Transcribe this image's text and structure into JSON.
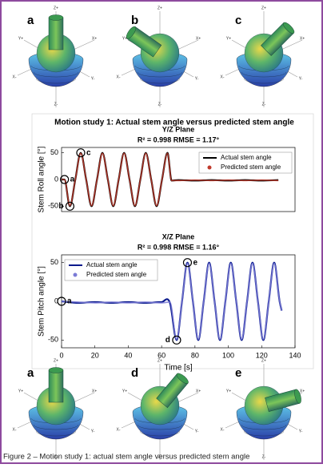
{
  "figure_title": "Motion study 1: Actual stem angle versus predicted stem angle",
  "panels_top": [
    "a",
    "b",
    "c"
  ],
  "panels_bottom": [
    "a",
    "d",
    "e"
  ],
  "axis_labels": {
    "z_pos": "Z+",
    "y_pos": "Y+",
    "x_pos": "X+",
    "x_neg": "X-",
    "y_neg": "Y-",
    "z_neg": "Z-"
  },
  "caption": "Figure 2 – Motion study 1: actual stem angle versus predicted stem angle",
  "chart_data": [
    {
      "type": "line",
      "title": "Y/Z Plane",
      "subtitle": "R² = 0.998 RMSE = 1.17°",
      "y_label": "Stem Roll angle [°]",
      "xlim": [
        0,
        140
      ],
      "ylim": [
        -60,
        60
      ],
      "yticks": [
        50,
        0,
        -50
      ],
      "legend": "upper right",
      "x": [
        0,
        1.75,
        5,
        8.25,
        11.5,
        14.75,
        18,
        21.25,
        24.5,
        27.75,
        31,
        34.25,
        37.5,
        40.75,
        44,
        47.25,
        50.5,
        53.75,
        57,
        60.25,
        63.5,
        66,
        70,
        80,
        90,
        100,
        110,
        120,
        130
      ],
      "series": [
        {
          "name": "Actual stem angle",
          "color": "#000000",
          "values": [
            0,
            0,
            -50,
            0,
            50,
            0,
            -50,
            0,
            50,
            0,
            -50,
            0,
            50,
            0,
            -50,
            0,
            50,
            0,
            -50,
            0,
            50,
            -2,
            -1,
            -2,
            -1,
            -2,
            -1,
            -2,
            -1
          ]
        },
        {
          "name": "Predicted stem angle",
          "color": "#c0392b",
          "values": [
            0,
            0,
            -49,
            0,
            49,
            0,
            -49,
            0,
            49,
            0,
            -49,
            0,
            49,
            0,
            -49,
            0,
            49,
            0,
            -49,
            0,
            49,
            -2,
            -2,
            -1,
            -2,
            -1,
            -2,
            -1,
            -2
          ]
        }
      ],
      "annotations": [
        {
          "text": "a",
          "x": 1.75,
          "y": 0
        },
        {
          "text": "b",
          "x": 5,
          "y": -50
        },
        {
          "text": "c",
          "x": 11.5,
          "y": 50
        }
      ]
    },
    {
      "type": "line",
      "title": "X/Z Plane",
      "subtitle": "R² = 0.998 RMSE = 1.16°",
      "y_label": "Stem Pitch angle [°]",
      "x_label": "Time [s]",
      "xlim": [
        0,
        140
      ],
      "ylim": [
        -60,
        60
      ],
      "xticks": [
        0,
        20,
        40,
        60,
        80,
        100,
        120,
        140
      ],
      "yticks": [
        50,
        0,
        -50
      ],
      "legend": "upper left",
      "x": [
        0,
        10,
        20,
        30,
        40,
        50,
        60,
        65,
        69,
        72.25,
        75.5,
        78.75,
        82,
        85.25,
        88.5,
        91.75,
        95,
        98.25,
        101.5,
        104.75,
        108,
        111.25,
        114.5,
        117.75,
        121,
        124.25,
        127.5,
        130.75,
        132
      ],
      "series": [
        {
          "name": "Actual stem angle",
          "color": "#0a1a8c",
          "values": [
            0,
            -2,
            -1,
            -2,
            -1,
            -2,
            -1,
            -2,
            -50,
            0,
            50,
            0,
            -50,
            0,
            50,
            0,
            -50,
            0,
            50,
            0,
            -50,
            0,
            50,
            0,
            -50,
            0,
            50,
            0,
            -12
          ]
        },
        {
          "name": "Predicted stem angle",
          "color": "#7b7bd6",
          "values": [
            0,
            -1,
            -2,
            -1,
            -2,
            -1,
            -2,
            -1,
            -49,
            0,
            49,
            0,
            -49,
            0,
            49,
            0,
            -49,
            0,
            49,
            0,
            -49,
            0,
            49,
            0,
            -49,
            0,
            49,
            0,
            -12
          ]
        }
      ],
      "annotations": [
        {
          "text": "a",
          "x": 0,
          "y": 0
        },
        {
          "text": "d",
          "x": 69,
          "y": -50
        },
        {
          "text": "e",
          "x": 75.5,
          "y": 50
        }
      ]
    }
  ]
}
